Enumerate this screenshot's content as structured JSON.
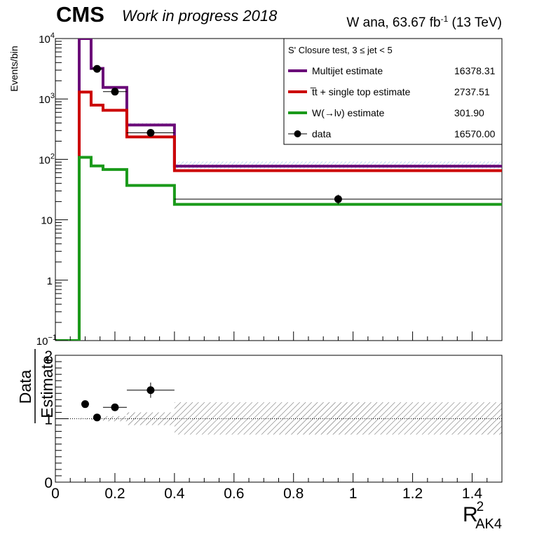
{
  "header": {
    "experiment": "CMS",
    "status": "Work in progress 2018",
    "lumi_prefix": "W ana, 63.67 fb",
    "lumi_exp": "-1",
    "lumi_suffix": " (13 TeV)"
  },
  "legend": {
    "title": "S' Closure test, 3 ≤ jet < 5",
    "entries": [
      {
        "label": "Multijet estimate",
        "value": "16378.31",
        "color": "#6a0a78",
        "kind": "line"
      },
      {
        "label": "t̅t + single top estimate",
        "value": "2737.51",
        "color": "#cc0000",
        "kind": "line"
      },
      {
        "label": "W(→lν) estimate",
        "value": "301.90",
        "color": "#1a9a1a",
        "kind": "line"
      },
      {
        "label": "data",
        "value": "16570.00",
        "color": "#000000",
        "kind": "marker"
      }
    ]
  },
  "chart_data": [
    {
      "type": "line",
      "step": true,
      "ylabel": "Events/bin",
      "yscale": "log",
      "ylim": [
        0.1,
        10000
      ],
      "xlim": [
        0,
        1.5
      ],
      "y_ticks": [
        {
          "v": 0.1,
          "base": "10",
          "exp": "−1"
        },
        {
          "v": 1,
          "base": "1",
          "exp": ""
        },
        {
          "v": 10,
          "base": "10",
          "exp": ""
        },
        {
          "v": 100,
          "base": "10",
          "exp": "2"
        },
        {
          "v": 1000,
          "base": "10",
          "exp": "3"
        },
        {
          "v": 10000,
          "base": "10",
          "exp": "4"
        }
      ],
      "bin_edges": [
        0,
        0.08,
        0.12,
        0.16,
        0.24,
        0.4,
        1.5
      ],
      "series": [
        {
          "name": "Multijet estimate",
          "color": "#6a0a78",
          "values": [
            0.1,
            10000,
            3200,
            1550,
            370,
            77
          ]
        },
        {
          "name": "t̅t + single top estimate",
          "color": "#cc0000",
          "values": [
            0.1,
            1300,
            790,
            650,
            235,
            65
          ]
        },
        {
          "name": "W(→lν) estimate",
          "color": "#1a9a1a",
          "values": [
            0.1,
            108,
            78,
            68,
            37,
            18
          ]
        }
      ],
      "uncertainty_band": {
        "lo": [
          0,
          0,
          0,
          0,
          355,
          70
        ],
        "hi": [
          0,
          0,
          0,
          0,
          400,
          92
        ]
      },
      "data": {
        "name": "data",
        "points": [
          {
            "x": 0.14,
            "xerr": 0.02,
            "y": 3150,
            "ylo": 2950,
            "yhi": 3350
          },
          {
            "x": 0.2,
            "xerr": 0.04,
            "y": 1320,
            "ylo": 1200,
            "yhi": 1450
          },
          {
            "x": 0.32,
            "xerr": 0.08,
            "y": 275,
            "ylo": 255,
            "yhi": 295
          },
          {
            "x": 0.95,
            "xerr": 0.55,
            "y": 22,
            "ylo": 18,
            "yhi": 26
          }
        ]
      }
    },
    {
      "type": "scatter",
      "ylabel_num": "Data",
      "ylabel_den": "Estimate",
      "xlabel_base": "R",
      "xlabel_sup": "2",
      "xlabel_sub": "AK4",
      "xlim": [
        0,
        1.5
      ],
      "ylim": [
        0,
        2
      ],
      "x_ticks": [
        0,
        0.2,
        0.4,
        0.6,
        0.8,
        1,
        1.2,
        1.4
      ],
      "x_tick_labels": [
        "0",
        "0.2",
        "0.4",
        "0.6",
        "0.8",
        "1",
        "1.2",
        "1.4"
      ],
      "y_ticks": [
        0,
        1,
        2
      ],
      "y_tick_labels": [
        "0",
        "1",
        "2"
      ],
      "reference_line": 1,
      "uncertainty_band": [
        {
          "x0": 0.08,
          "x1": 0.12,
          "lo": 0.99,
          "hi": 1.01
        },
        {
          "x0": 0.12,
          "x1": 0.16,
          "lo": 0.98,
          "hi": 1.02
        },
        {
          "x0": 0.16,
          "x1": 0.24,
          "lo": 0.96,
          "hi": 1.04
        },
        {
          "x0": 0.24,
          "x1": 0.4,
          "lo": 0.9,
          "hi": 1.1
        },
        {
          "x0": 0.4,
          "x1": 1.5,
          "lo": 0.75,
          "hi": 1.26
        }
      ],
      "points": [
        {
          "x": 0.1,
          "xerr": 0.0,
          "y": 1.23,
          "ylo": 1.21,
          "yhi": 1.25
        },
        {
          "x": 0.14,
          "xerr": 0.0,
          "y": 1.02,
          "ylo": 1.0,
          "yhi": 1.04
        },
        {
          "x": 0.2,
          "xerr": 0.04,
          "y": 1.18,
          "ylo": 1.15,
          "yhi": 1.21
        },
        {
          "x": 0.32,
          "xerr": 0.08,
          "y": 1.45,
          "ylo": 1.33,
          "yhi": 1.57
        }
      ]
    }
  ]
}
